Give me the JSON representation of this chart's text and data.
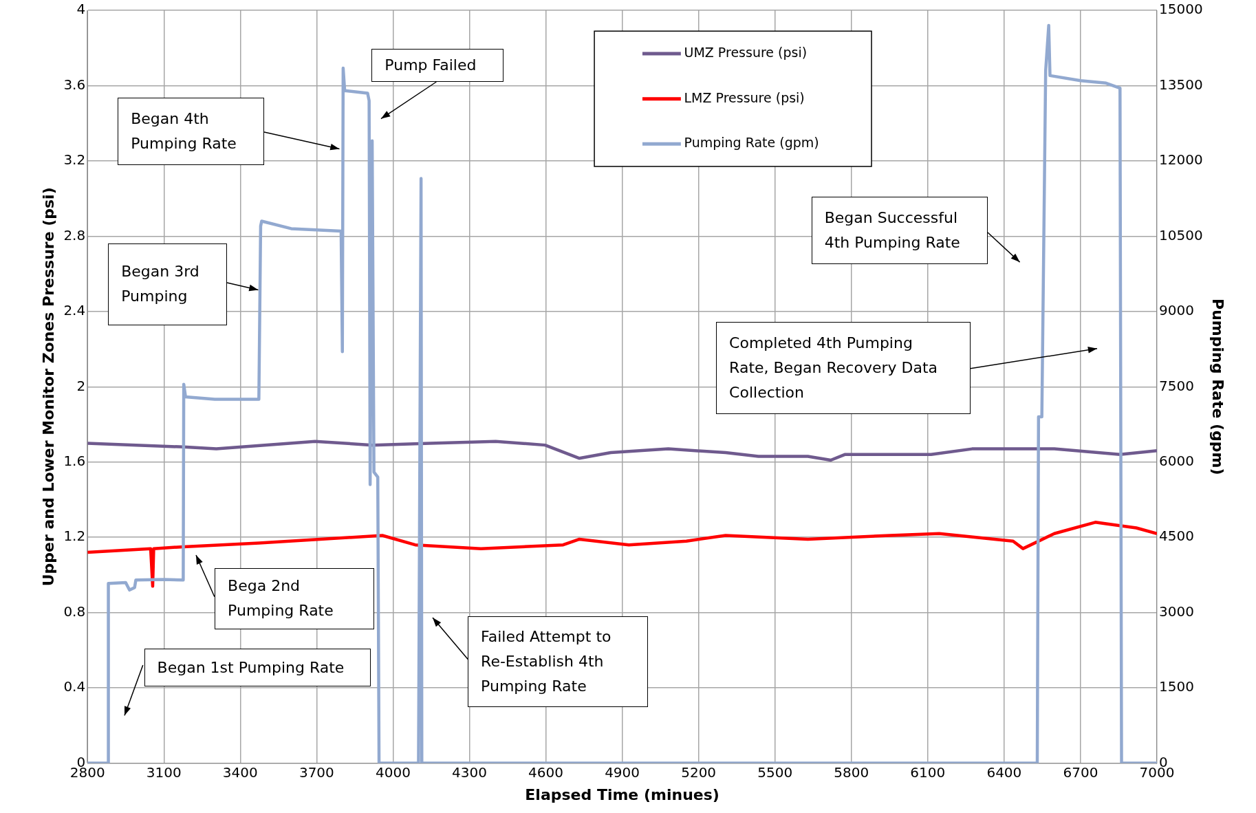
{
  "chart_data": {
    "type": "line",
    "xlabel": "Elapsed Time (minues)",
    "ylabel": "Upper and Lower Monitor Zones Pressure (psi)",
    "y2label": "Pumping Rate (gpm)",
    "xlim": [
      2800,
      7000
    ],
    "xticks": [
      2800,
      3100,
      3400,
      3700,
      4000,
      4300,
      4600,
      4900,
      5200,
      5500,
      5800,
      6100,
      6400,
      6700,
      7000
    ],
    "ylim": [
      0,
      4
    ],
    "yticks": [
      0,
      0.4,
      0.8,
      1.2,
      1.6,
      2,
      2.4,
      2.8,
      3.2,
      3.6,
      4
    ],
    "y2lim": [
      0,
      15000
    ],
    "y2ticks": [
      0,
      1500,
      3000,
      4500,
      6000,
      7500,
      9000,
      10500,
      12000,
      13500,
      15000
    ],
    "grid": true,
    "legend": "top",
    "marker": "none",
    "line_style": "solid",
    "series": [
      {
        "name": "UMZ Pressure (psi)",
        "color": "#6f5a8e",
        "x": [
          2800,
          3177,
          3306,
          3694,
          3919,
          4145,
          4403,
          4597,
          4732,
          4855,
          5081,
          5306,
          5435,
          5629,
          5719,
          5774,
          6113,
          6274,
          6597,
          6855,
          7000
        ],
        "values": [
          1.7,
          1.68,
          1.67,
          1.71,
          1.69,
          1.7,
          1.71,
          1.69,
          1.62,
          1.65,
          1.67,
          1.65,
          1.63,
          1.63,
          1.61,
          1.64,
          1.64,
          1.67,
          1.67,
          1.64,
          1.66
        ]
      },
      {
        "name": "LMZ Pressure (psi)",
        "color": "#ff0000",
        "x": [
          2800,
          3048,
          3056,
          3060,
          3177,
          3474,
          3958,
          4087,
          4345,
          4668,
          4732,
          4926,
          5152,
          5306,
          5629,
          5952,
          6145,
          6435,
          6474,
          6597,
          6758,
          6919,
          7000
        ],
        "values": [
          1.12,
          1.14,
          0.94,
          1.14,
          1.15,
          1.17,
          1.21,
          1.16,
          1.14,
          1.16,
          1.19,
          1.16,
          1.18,
          1.21,
          1.19,
          1.21,
          1.22,
          1.18,
          1.14,
          1.22,
          1.28,
          1.25,
          1.22
        ]
      },
      {
        "name": "Pumping Rate (gpm)",
        "color": "#92a9d0",
        "axis": "y2",
        "x": [
          2800,
          2881,
          2882,
          2950,
          2965,
          2985,
          2990,
          3100,
          3176,
          3178,
          3185,
          3300,
          3473,
          3480,
          3484,
          3600,
          3796,
          3801,
          3804,
          3810,
          3900,
          3906,
          3910,
          3918,
          3925,
          3940,
          3945,
          4100,
          4110,
          4113,
          6530,
          6535,
          6548,
          6563,
          6575,
          6580,
          6700,
          6800,
          6855,
          6861,
          7000
        ],
        "values": [
          0,
          0,
          3580,
          3600,
          3450,
          3500,
          3650,
          3660,
          3650,
          7550,
          7300,
          7250,
          7250,
          10700,
          10800,
          10650,
          10600,
          8200,
          13850,
          13400,
          13350,
          13200,
          5550,
          12400,
          5800,
          5700,
          0,
          0,
          11650,
          0,
          0,
          6900,
          6900,
          13800,
          14700,
          13700,
          13600,
          13550,
          13450,
          0,
          0
        ]
      }
    ],
    "annotations": [
      "Began 1st Pumping Rate",
      "Bega 2nd\nPumping Rate",
      "Began 3rd\nPumping",
      "Began 4th\nPumping Rate",
      "Pump Failed",
      "Failed Attempt to\nRe-Establish 4th\nPumping Rate",
      "Began Successful\n4th Pumping Rate",
      "Completed 4th Pumping\nRate, Began Recovery Data\nCollection"
    ]
  }
}
